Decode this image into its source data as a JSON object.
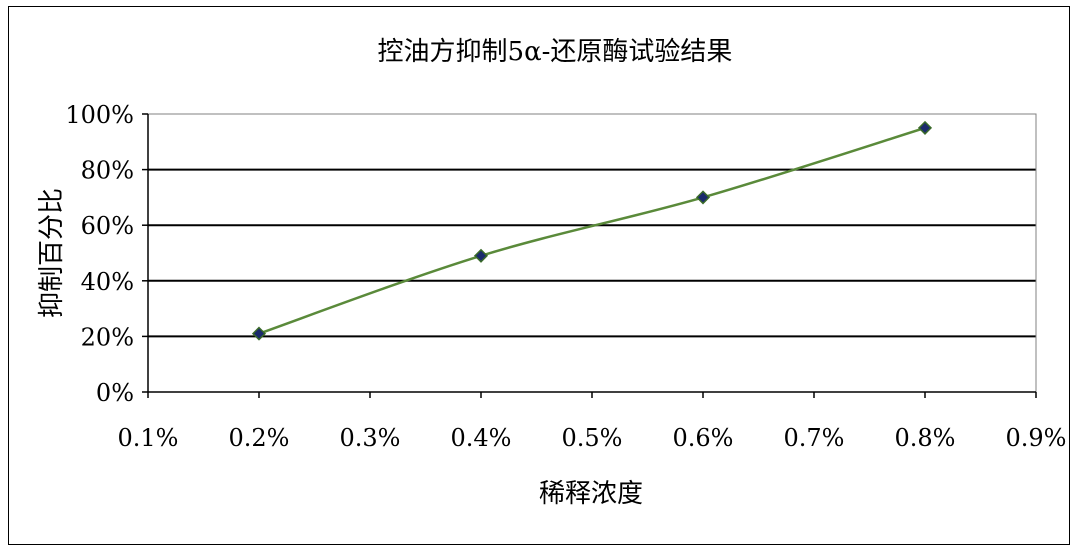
{
  "chart_data": {
    "type": "line",
    "title": "控油方抑制5α-还原酶试验结果",
    "xlabel": "稀释浓度",
    "ylabel": "抑制百分比",
    "x_ticks": [
      "0.1%",
      "0.2%",
      "0.3%",
      "0.4%",
      "0.5%",
      "0.6%",
      "0.7%",
      "0.8%",
      "0.9%"
    ],
    "y_ticks": [
      "0%",
      "20%",
      "40%",
      "60%",
      "80%",
      "100%"
    ],
    "xlim": [
      0.1,
      0.9
    ],
    "ylim": [
      0,
      100
    ],
    "grid": "horizontal",
    "series": [
      {
        "x": [
          0.2,
          0.4,
          0.6,
          0.8
        ],
        "y": [
          21,
          49,
          70,
          95
        ]
      }
    ],
    "colors": {
      "line": "#5a8a3a",
      "marker": "#1a2a6c",
      "marker_edge": "#3a6a2a",
      "grid": "#000000"
    }
  }
}
